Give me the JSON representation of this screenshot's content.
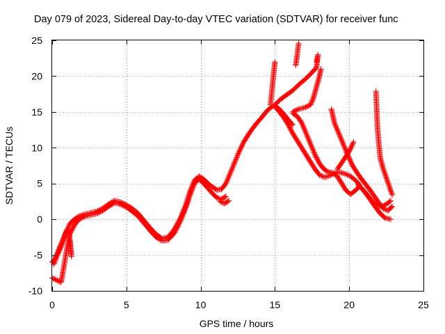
{
  "chart_data": {
    "type": "scatter",
    "title": "Day 079 of 2023, Sidereal Day-to-day VTEC variation (SDTVAR) for receiver func",
    "xlabel": "GPS time / hours",
    "ylabel": "SDTVAR / TECUs",
    "xlim": [
      0,
      25
    ],
    "ylim": [
      -10,
      25
    ],
    "xticks": [
      0,
      5,
      10,
      15,
      20,
      25
    ],
    "yticks": [
      -10,
      -5,
      0,
      5,
      10,
      15,
      20,
      25
    ],
    "grid": true,
    "marker": "+",
    "color": "#ff0000",
    "series": [
      {
        "name": "main-trace",
        "points": [
          [
            0.0,
            -6.0
          ],
          [
            0.2,
            -5.5
          ],
          [
            0.4,
            -4.5
          ],
          [
            0.6,
            -3.5
          ],
          [
            0.8,
            -2.5
          ],
          [
            1.0,
            -1.5
          ],
          [
            1.2,
            -0.6
          ],
          [
            1.5,
            0.0
          ],
          [
            1.8,
            0.4
          ],
          [
            2.2,
            0.7
          ],
          [
            2.6,
            0.9
          ],
          [
            3.0,
            1.1
          ],
          [
            3.4,
            1.5
          ],
          [
            3.8,
            2.1
          ],
          [
            4.2,
            2.6
          ],
          [
            4.6,
            2.4
          ],
          [
            5.0,
            2.0
          ],
          [
            5.4,
            1.5
          ],
          [
            5.8,
            0.8
          ],
          [
            6.2,
            -0.2
          ],
          [
            6.6,
            -1.2
          ],
          [
            7.0,
            -2.1
          ],
          [
            7.4,
            -2.7
          ],
          [
            7.8,
            -2.5
          ],
          [
            8.2,
            -1.5
          ],
          [
            8.6,
            0.0
          ],
          [
            9.0,
            2.0
          ],
          [
            9.3,
            4.0
          ],
          [
            9.6,
            5.5
          ],
          [
            9.9,
            6.0
          ],
          [
            10.2,
            5.6
          ],
          [
            10.5,
            5.0
          ],
          [
            10.8,
            4.5
          ],
          [
            11.1,
            4.1
          ],
          [
            11.4,
            4.2
          ],
          [
            11.7,
            5.0
          ],
          [
            12.0,
            6.5
          ],
          [
            12.3,
            8.0
          ],
          [
            12.6,
            9.5
          ],
          [
            12.9,
            10.8
          ],
          [
            13.2,
            11.8
          ],
          [
            13.5,
            12.7
          ],
          [
            13.8,
            13.5
          ],
          [
            14.1,
            14.2
          ],
          [
            14.4,
            15.0
          ],
          [
            14.7,
            15.6
          ],
          [
            15.0,
            15.9
          ],
          [
            15.3,
            15.4
          ],
          [
            15.6,
            14.7
          ],
          [
            15.9,
            13.9
          ],
          [
            16.2,
            13.2
          ]
        ]
      },
      {
        "name": "branch-1",
        "points": [
          [
            0.0,
            -8.2
          ],
          [
            0.2,
            -8.4
          ],
          [
            0.4,
            -8.6
          ],
          [
            0.6,
            -8.8
          ],
          [
            0.8,
            -6.5
          ],
          [
            1.0,
            -4.0
          ],
          [
            1.2,
            -2.0
          ],
          [
            1.5,
            -0.8
          ],
          [
            1.8,
            0.0
          ],
          [
            2.2,
            0.4
          ],
          [
            2.6,
            0.6
          ],
          [
            3.0,
            0.8
          ],
          [
            3.4,
            1.2
          ],
          [
            3.8,
            1.8
          ],
          [
            4.2,
            2.3
          ],
          [
            4.6,
            2.1
          ],
          [
            5.0,
            1.7
          ],
          [
            5.4,
            1.1
          ],
          [
            5.8,
            0.4
          ],
          [
            6.2,
            -0.6
          ],
          [
            6.6,
            -1.6
          ],
          [
            7.0,
            -2.5
          ],
          [
            7.4,
            -3.0
          ],
          [
            7.8,
            -2.9
          ],
          [
            8.2,
            -2.0
          ],
          [
            8.6,
            -0.4
          ],
          [
            9.0,
            1.6
          ],
          [
            9.3,
            3.5
          ],
          [
            9.6,
            5.1
          ],
          [
            9.9,
            5.6
          ],
          [
            10.2,
            5.0
          ],
          [
            10.5,
            4.3
          ],
          [
            10.8,
            3.6
          ],
          [
            11.1,
            3.0
          ],
          [
            11.4,
            2.8
          ],
          [
            11.7,
            3.2
          ]
        ]
      },
      {
        "name": "branch-2",
        "points": [
          [
            11.3,
            2.5
          ],
          [
            11.6,
            2.2
          ],
          [
            11.9,
            2.6
          ]
        ]
      },
      {
        "name": "branch-3",
        "points": [
          [
            15.0,
            16.0
          ],
          [
            15.4,
            16.8
          ],
          [
            15.8,
            17.4
          ],
          [
            16.2,
            18.0
          ],
          [
            16.6,
            18.8
          ],
          [
            17.0,
            19.5
          ],
          [
            17.4,
            20.3
          ],
          [
            17.8,
            21.2
          ],
          [
            17.9,
            23.0
          ],
          [
            17.8,
            22.0
          ]
        ]
      },
      {
        "name": "branch-4",
        "points": [
          [
            14.7,
            16.0
          ],
          [
            14.8,
            18.0
          ],
          [
            14.9,
            20.0
          ],
          [
            15.0,
            22.0
          ]
        ]
      },
      {
        "name": "branch-5",
        "points": [
          [
            16.4,
            21.5
          ],
          [
            16.5,
            23.0
          ],
          [
            16.6,
            24.6
          ]
        ]
      },
      {
        "name": "branch-6",
        "points": [
          [
            15.0,
            15.8
          ],
          [
            15.3,
            15.0
          ],
          [
            15.6,
            14.2
          ],
          [
            15.9,
            13.2
          ],
          [
            16.2,
            12.0
          ],
          [
            16.5,
            11.0
          ],
          [
            16.8,
            10.0
          ],
          [
            17.1,
            9.0
          ],
          [
            17.4,
            8.0
          ],
          [
            17.7,
            7.0
          ],
          [
            18.0,
            6.2
          ],
          [
            18.3,
            5.9
          ],
          [
            18.6,
            6.0
          ],
          [
            18.9,
            6.3
          ],
          [
            19.2,
            6.6
          ],
          [
            19.5,
            6.5
          ],
          [
            19.8,
            6.3
          ],
          [
            20.1,
            6.0
          ],
          [
            20.4,
            5.5
          ],
          [
            20.7,
            4.8
          ]
        ]
      },
      {
        "name": "branch-7",
        "points": [
          [
            16.2,
            14.8
          ],
          [
            16.5,
            14.4
          ],
          [
            16.8,
            13.5
          ],
          [
            17.1,
            12.0
          ],
          [
            17.4,
            10.5
          ],
          [
            17.7,
            9.0
          ],
          [
            18.0,
            7.8
          ],
          [
            18.3,
            7.0
          ],
          [
            18.6,
            6.6
          ],
          [
            18.9,
            6.5
          ],
          [
            19.2,
            6.0
          ],
          [
            19.5,
            5.0
          ],
          [
            19.8,
            4.0
          ],
          [
            20.1,
            3.5
          ],
          [
            20.4,
            4.0
          ],
          [
            20.7,
            4.6
          ],
          [
            21.0,
            4.0
          ],
          [
            21.3,
            3.2
          ],
          [
            21.6,
            2.4
          ],
          [
            21.9,
            1.9
          ],
          [
            22.2,
            1.8
          ],
          [
            22.5,
            2.1
          ],
          [
            22.8,
            2.6
          ]
        ]
      },
      {
        "name": "branch-8",
        "points": [
          [
            16.2,
            15.0
          ],
          [
            16.6,
            15.4
          ],
          [
            17.0,
            15.6
          ],
          [
            17.4,
            16.0
          ],
          [
            17.6,
            17.0
          ],
          [
            17.8,
            18.5
          ],
          [
            18.0,
            20.0
          ],
          [
            18.1,
            21.0
          ]
        ]
      },
      {
        "name": "branch-9",
        "points": [
          [
            18.8,
            15.4
          ],
          [
            19.0,
            13.5
          ],
          [
            19.3,
            12.0
          ],
          [
            19.6,
            10.5
          ],
          [
            19.9,
            9.0
          ],
          [
            20.2,
            7.6
          ],
          [
            20.5,
            6.6
          ],
          [
            20.8,
            5.7
          ],
          [
            21.1,
            4.9
          ],
          [
            21.4,
            4.1
          ],
          [
            21.7,
            3.2
          ],
          [
            22.0,
            2.3
          ],
          [
            22.3,
            1.5
          ],
          [
            22.6,
            1.2
          ],
          [
            22.9,
            1.8
          ]
        ]
      },
      {
        "name": "branch-10",
        "points": [
          [
            19.2,
            7.0
          ],
          [
            19.6,
            8.2
          ],
          [
            20.0,
            9.5
          ],
          [
            20.3,
            10.8
          ]
        ]
      },
      {
        "name": "branch-11",
        "points": [
          [
            20.6,
            4.8
          ],
          [
            20.9,
            4.2
          ],
          [
            21.2,
            3.4
          ],
          [
            21.5,
            2.5
          ],
          [
            21.8,
            1.6
          ],
          [
            22.1,
            0.8
          ],
          [
            22.4,
            0.2
          ],
          [
            22.8,
            0.0
          ]
        ]
      },
      {
        "name": "branch-12",
        "points": [
          [
            21.8,
            17.9
          ],
          [
            21.85,
            15.5
          ],
          [
            21.9,
            13.0
          ],
          [
            22.0,
            10.5
          ],
          [
            22.1,
            8.5
          ],
          [
            22.3,
            7.0
          ],
          [
            22.5,
            5.8
          ],
          [
            22.7,
            4.6
          ],
          [
            22.9,
            3.4
          ]
        ]
      },
      {
        "name": "branch-13",
        "points": [
          [
            0.1,
            -6.3
          ],
          [
            0.3,
            -5.2
          ],
          [
            0.5,
            -4.3
          ],
          [
            0.7,
            -3.2
          ],
          [
            0.9,
            -2.0
          ],
          [
            1.1,
            -1.2
          ],
          [
            1.3,
            -5.2
          ],
          [
            1.2,
            -3.0
          ]
        ]
      }
    ]
  }
}
